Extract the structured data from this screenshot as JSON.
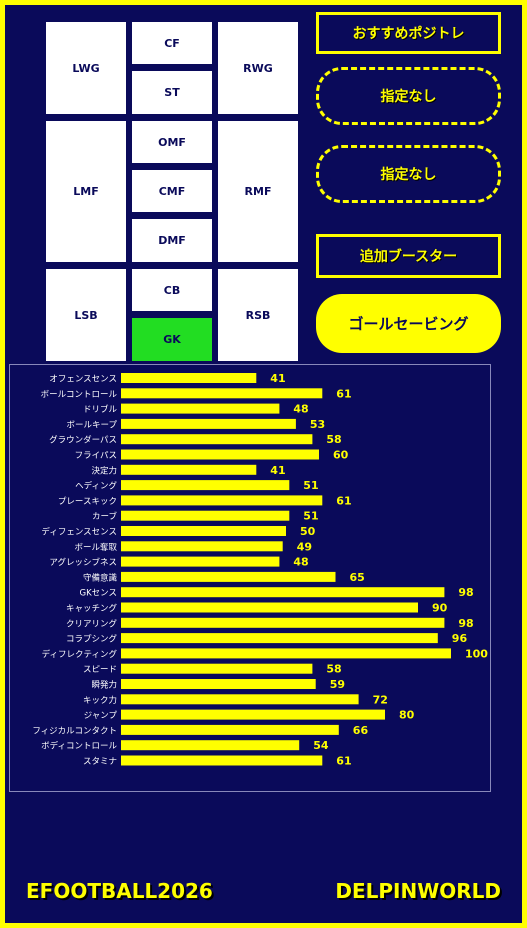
{
  "positions": {
    "lwg": "LWG",
    "cf": "CF",
    "st": "ST",
    "rwg": "RWG",
    "omf": "OMF",
    "lmf": "LMF",
    "cmf": "CMF",
    "rmf": "RMF",
    "dmf": "DMF",
    "lsb": "LSB",
    "cb": "CB",
    "rsb": "RSB",
    "gk": "GK"
  },
  "buttons": {
    "recommend": "おすすめポジトレ",
    "slot1": "指定なし",
    "slot2": "指定なし",
    "booster": "追加ブースター",
    "skill": "ゴールセービング"
  },
  "colors": {
    "bar": "#ffff00",
    "background": "#0a0a5a",
    "active_position": "#22dd22"
  },
  "chart_data": {
    "type": "bar",
    "orientation": "horizontal",
    "categories": [
      "オフェンスセンス",
      "ボールコントロール",
      "ドリブル",
      "ボールキープ",
      "グラウンダーパス",
      "フライパス",
      "決定力",
      "ヘディング",
      "プレースキック",
      "カーブ",
      "ディフェンスセンス",
      "ボール奪取",
      "アグレッシブネス",
      "守備意識",
      "GKセンス",
      "キャッチング",
      "クリアリング",
      "コラプシング",
      "ディフレクティング",
      "スピード",
      "瞬発力",
      "キック力",
      "ジャンプ",
      "フィジカルコンタクト",
      "ボディコントロール",
      "スタミナ"
    ],
    "values": [
      41,
      61,
      48,
      53,
      58,
      60,
      41,
      51,
      61,
      51,
      50,
      49,
      48,
      65,
      98,
      90,
      98,
      96,
      100,
      58,
      59,
      72,
      80,
      66,
      54,
      61
    ],
    "xlim": [
      0,
      100
    ]
  },
  "footer": {
    "left": "EFOOTBALL2026",
    "right": "DELPINWORLD"
  }
}
